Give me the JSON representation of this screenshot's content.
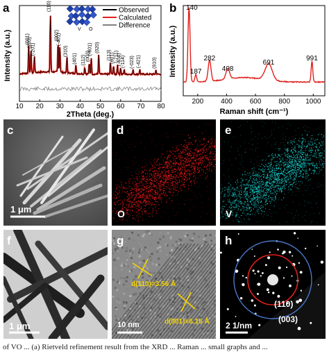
{
  "panels": {
    "a": {
      "label": "a",
      "chart_data": {
        "type": "line",
        "title": "",
        "xlabel": "2Theta (deg.)",
        "ylabel": "Intensity (a.u.)",
        "xlim": [
          10,
          80
        ],
        "x_ticks": [
          "10",
          "20",
          "30",
          "40",
          "50",
          "60",
          "70",
          "80"
        ],
        "legend_position": "top-right",
        "series": [
          {
            "name": "Observed",
            "color": "#000000"
          },
          {
            "name": "Calculated",
            "color": "#e0201b"
          },
          {
            "name": "Difference",
            "color": "#808080"
          }
        ],
        "peaks": [
          {
            "x": 14.6,
            "y": 0.46,
            "label": "(001)"
          },
          {
            "x": 15.7,
            "y": 0.4,
            "label": "(200)"
          },
          {
            "x": 17.4,
            "y": 0.28,
            "label": "(-201)"
          },
          {
            "x": 25.3,
            "y": 1.0,
            "label": "(110)"
          },
          {
            "x": 29.1,
            "y": 0.52,
            "label": "(002)"
          },
          {
            "x": 30.0,
            "y": 0.44,
            "label": "(-401)"
          },
          {
            "x": 33.5,
            "y": 0.26,
            "label": "(310)"
          },
          {
            "x": 37.9,
            "y": 0.14,
            "label": "(401)"
          },
          {
            "x": 42.3,
            "y": 0.12,
            "label": "(112)"
          },
          {
            "x": 44.5,
            "y": 0.18,
            "label": "(003)"
          },
          {
            "x": 45.5,
            "y": 0.28,
            "label": "(-601)"
          },
          {
            "x": 49.2,
            "y": 0.32,
            "label": "(020)"
          },
          {
            "x": 55.0,
            "y": 0.2,
            "label": "(113)"
          },
          {
            "x": 56.5,
            "y": 0.15,
            "label": "(601)"
          },
          {
            "x": 58.5,
            "y": 0.16,
            "label": "(-711)"
          },
          {
            "x": 60.0,
            "y": 0.11,
            "label": "(-404)"
          },
          {
            "x": 61.8,
            "y": 0.08,
            "label": "(-114)"
          },
          {
            "x": 66.2,
            "y": 0.07,
            "label": "(-023)"
          },
          {
            "x": 69.5,
            "y": 0.08,
            "label": "(-421)"
          },
          {
            "x": 77.5,
            "y": 0.07,
            "label": "(910)"
          }
        ],
        "inset_legend_labels": [
          "V",
          "O"
        ]
      }
    },
    "b": {
      "label": "b",
      "chart_data": {
        "type": "line",
        "title": "",
        "xlabel": "Raman shift (cm⁻¹)",
        "ylabel": "Intensity (a.u.)",
        "xlim": [
          100,
          1080
        ],
        "x_ticks": [
          "200",
          "400",
          "600",
          "800",
          "1000"
        ],
        "series": [
          {
            "name": "",
            "color": "#e0201b"
          }
        ],
        "peaks": [
          {
            "x": 140,
            "y": 1.0,
            "label": "140"
          },
          {
            "x": 187,
            "y": 0.1,
            "label": "187"
          },
          {
            "x": 282,
            "y": 0.28,
            "label": "282"
          },
          {
            "x": 408,
            "y": 0.14,
            "label": "408"
          },
          {
            "x": 691,
            "y": 0.22,
            "label": "691"
          },
          {
            "x": 991,
            "y": 0.28,
            "label": "991"
          }
        ]
      }
    },
    "c": {
      "label": "c",
      "scale": "1 μm"
    },
    "d": {
      "label": "d",
      "element": "O",
      "map_color": "#ff1a1a"
    },
    "e": {
      "label": "e",
      "element": "V",
      "map_color": "#19d6d6"
    },
    "f": {
      "label": "f",
      "scale": "1 μm"
    },
    "g": {
      "label": "g",
      "scale": "10 nm",
      "d1": "d(110)=3.56 Å",
      "d2": "d(001)=6.15 Å"
    },
    "h": {
      "label": "h",
      "scale": "2 1/nm",
      "ring1": "(110)",
      "ring2": "(003)"
    }
  },
  "caption": "of VO ... (a) Rietveld refinement result from the XRD ... Raman ... small graphs and ... "
}
